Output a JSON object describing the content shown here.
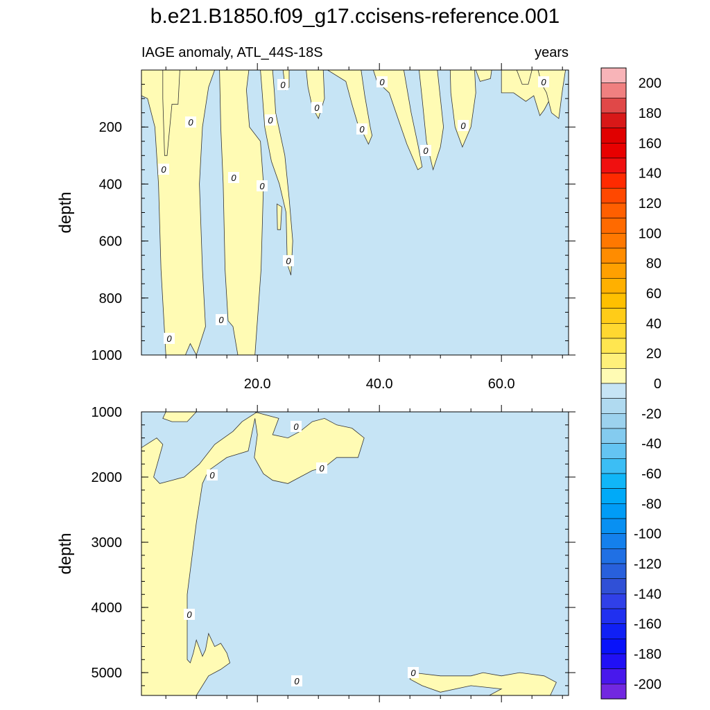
{
  "chart_data": {
    "type": "contour",
    "title": "b.e21.B1850.f09_g17.ccisens-reference.001",
    "subtitle_left": "IAGE anomaly, ATL_44S-18S",
    "subtitle_right": "years",
    "xlim": [
      1,
      71
    ],
    "x_ticks": [
      20,
      40,
      60
    ],
    "x_tick_labels": [
      "20.0",
      "40.0",
      "60.0"
    ],
    "colors": {
      "positive_fill": "#fffbb4",
      "negative_fill": "#c6e4f5",
      "contour_line": "#333333"
    },
    "panels": [
      {
        "name": "upper",
        "ylabel": "depth",
        "ylim": [
          0,
          1000
        ],
        "y_reversed": true,
        "y_tick_labels": [
          "200",
          "400",
          "600",
          "800",
          "1000"
        ],
        "y_ticks": [
          200,
          400,
          600,
          800,
          1000
        ],
        "contour_labels": [
          "0",
          "0",
          "0",
          "0",
          "0",
          "0",
          "0",
          "0",
          "0",
          "0",
          "0",
          "0",
          "0",
          "0",
          "0",
          "0"
        ],
        "positive_regions": [
          [
            [
              1,
              0
            ],
            [
              13,
              0
            ],
            [
              12,
              60
            ],
            [
              11,
              200
            ],
            [
              10.5,
              400
            ],
            [
              11,
              700
            ],
            [
              11.5,
              900
            ],
            [
              10,
              1000
            ],
            [
              10,
              1000
            ],
            [
              9,
              960
            ],
            [
              8.2,
              1000
            ],
            [
              5,
              1000
            ],
            [
              4.2,
              700
            ],
            [
              3.8,
              400
            ],
            [
              3.2,
              200
            ],
            [
              2,
              100
            ],
            [
              1,
              90
            ]
          ],
          [
            [
              4.5,
              0
            ],
            [
              7.3,
              0
            ],
            [
              7,
              120
            ],
            [
              6,
              120
            ],
            [
              5.2,
              300
            ],
            [
              4.8,
              300
            ],
            [
              4.5,
              100
            ]
          ],
          [
            [
              13.8,
              0
            ],
            [
              18.6,
              0
            ],
            [
              18.2,
              70
            ],
            [
              18.7,
              200
            ],
            [
              20.5,
              250
            ],
            [
              21,
              400
            ],
            [
              20.6,
              700
            ],
            [
              19.6,
              1000
            ],
            [
              16.8,
              1000
            ],
            [
              16,
              900
            ],
            [
              15.2,
              880
            ],
            [
              14.7,
              700
            ],
            [
              14.4,
              400
            ],
            [
              14,
              200
            ]
          ],
          [
            [
              20.5,
              0
            ],
            [
              22.5,
              0
            ],
            [
              22.8,
              80
            ],
            [
              23,
              150
            ],
            [
              24.5,
              300
            ],
            [
              25.2,
              450
            ],
            [
              25.8,
              600
            ],
            [
              25.5,
              720
            ],
            [
              24.9,
              680
            ],
            [
              24.7,
              500
            ],
            [
              23.6,
              400
            ],
            [
              22.3,
              320
            ],
            [
              21.2,
              200
            ],
            [
              20.8,
              80
            ]
          ],
          [
            [
              24.2,
              0
            ],
            [
              25.2,
              0
            ],
            [
              25.2,
              60
            ],
            [
              24.6,
              70
            ]
          ],
          [
            [
              28,
              0
            ],
            [
              30.8,
              0
            ],
            [
              31,
              100
            ],
            [
              30,
              170
            ],
            [
              29,
              130
            ],
            [
              28.3,
              60
            ]
          ],
          [
            [
              31.5,
              0
            ],
            [
              37,
              0
            ],
            [
              37.6,
              90
            ],
            [
              38.5,
              200
            ],
            [
              38.8,
              230
            ],
            [
              38.2,
              260
            ],
            [
              37.3,
              220
            ],
            [
              36.6,
              200
            ],
            [
              35.5,
              120
            ],
            [
              34.5,
              40
            ]
          ],
          [
            [
              39,
              0
            ],
            [
              44,
              0
            ],
            [
              45.2,
              150
            ],
            [
              46.3,
              260
            ],
            [
              47,
              340
            ],
            [
              46.3,
              350
            ],
            [
              44.5,
              260
            ],
            [
              43.2,
              180
            ],
            [
              41.6,
              80
            ],
            [
              39.6,
              40
            ]
          ],
          [
            [
              46.5,
              0
            ],
            [
              49.5,
              0
            ],
            [
              50.5,
              200
            ],
            [
              50,
              270
            ],
            [
              48.8,
              350
            ],
            [
              47.7,
              250
            ],
            [
              47,
              100
            ]
          ],
          [
            [
              51.6,
              0
            ],
            [
              55.6,
              0
            ],
            [
              55.8,
              80
            ],
            [
              55,
              200
            ],
            [
              53.6,
              270
            ],
            [
              52.4,
              200
            ],
            [
              51.7,
              80
            ]
          ],
          [
            [
              55.8,
              0
            ],
            [
              58.4,
              0
            ],
            [
              58.2,
              30
            ],
            [
              56.5,
              40
            ]
          ],
          [
            [
              60,
              0
            ],
            [
              68,
              0
            ],
            [
              68,
              100
            ],
            [
              67,
              140
            ],
            [
              66.3,
              160
            ],
            [
              65.3,
              90
            ],
            [
              64,
              110
            ],
            [
              62,
              80
            ],
            [
              60,
              80
            ]
          ],
          [
            [
              62.5,
              0
            ],
            [
              65,
              0
            ],
            [
              64.4,
              50
            ],
            [
              63.4,
              50
            ]
          ],
          [
            [
              66,
              0
            ],
            [
              70.5,
              0
            ],
            [
              70,
              70
            ],
            [
              69.4,
              170
            ],
            [
              68.2,
              150
            ],
            [
              67.4,
              80
            ],
            [
              66.6,
              50
            ]
          ],
          [
            [
              23.2,
              470
            ],
            [
              24,
              480
            ],
            [
              23.8,
              560
            ],
            [
              23.3,
              560
            ]
          ]
        ]
      },
      {
        "name": "lower",
        "ylabel": "depth",
        "ylim": [
          1000,
          5350
        ],
        "y_reversed": true,
        "y_tick_labels": [
          "1000",
          "2000",
          "3000",
          "4000",
          "5000"
        ],
        "y_ticks": [
          1000,
          2000,
          3000,
          4000,
          5000
        ],
        "contour_labels": [
          "0",
          "0",
          "0",
          "0",
          "0",
          "0"
        ],
        "positive_regions": [
          [
            [
              1,
              1550
            ],
            [
              3.5,
              1400
            ],
            [
              4.5,
              1500
            ],
            [
              3,
              2000
            ],
            [
              4,
              2100
            ],
            [
              6,
              2050
            ],
            [
              8,
              2000
            ],
            [
              10.5,
              1800
            ],
            [
              13,
              1500
            ],
            [
              16,
              1300
            ],
            [
              17.5,
              1150
            ],
            [
              20,
              1000
            ],
            [
              19.5,
              1000
            ],
            [
              23.5,
              1100
            ],
            [
              22.5,
              1350
            ],
            [
              25,
              1400
            ],
            [
              27,
              1300
            ],
            [
              29,
              1150
            ],
            [
              31,
              1100
            ],
            [
              33,
              1200
            ],
            [
              35.5,
              1250
            ],
            [
              37.5,
              1400
            ],
            [
              36.5,
              1700
            ],
            [
              33,
              1700
            ],
            [
              31,
              1850
            ],
            [
              29,
              1900
            ],
            [
              27,
              2000
            ],
            [
              25,
              2100
            ],
            [
              22.5,
              2050
            ],
            [
              21,
              1950
            ],
            [
              19.5,
              1700
            ],
            [
              20,
              1350
            ],
            [
              19.6,
              1100
            ],
            [
              18.5,
              1600
            ],
            [
              15,
              1700
            ],
            [
              12,
              1900
            ],
            [
              11,
              2100
            ],
            [
              10,
              2700
            ],
            [
              8.5,
              3800
            ],
            [
              8.5,
              4800
            ],
            [
              9,
              4850
            ],
            [
              9.5,
              4700
            ],
            [
              10,
              4500
            ],
            [
              11,
              4750
            ],
            [
              11.5,
              4650
            ],
            [
              12,
              4400
            ],
            [
              13,
              4600
            ],
            [
              14,
              4550
            ],
            [
              15,
              4700
            ],
            [
              15.5,
              4850
            ],
            [
              14,
              4950
            ],
            [
              12,
              5050
            ],
            [
              10,
              5350
            ],
            [
              1,
              5350
            ]
          ],
          [
            [
              5,
              1000
            ],
            [
              10,
              1000
            ],
            [
              8.5,
              1150
            ],
            [
              6,
              1150
            ],
            [
              4.5,
              1100
            ]
          ],
          [
            [
              45.5,
              5000
            ],
            [
              50,
              5050
            ],
            [
              55,
              5050
            ],
            [
              57,
              5000
            ],
            [
              60,
              5050
            ],
            [
              63,
              5000
            ],
            [
              67,
              5050
            ],
            [
              69,
              5150
            ],
            [
              68,
              5350
            ],
            [
              58,
              5350
            ],
            [
              60,
              5250
            ],
            [
              55,
              5200
            ],
            [
              50,
              5300
            ],
            [
              47,
              5200
            ],
            [
              45,
              5100
            ]
          ]
        ]
      }
    ],
    "colorbar": {
      "labels": [
        "200",
        "180",
        "160",
        "140",
        "120",
        "100",
        "80",
        "60",
        "40",
        "20",
        "0",
        "-20",
        "-40",
        "-60",
        "-80",
        "-100",
        "-120",
        "-140",
        "-160",
        "-180",
        "-200"
      ],
      "levels": [
        210,
        200,
        190,
        180,
        170,
        160,
        150,
        140,
        130,
        120,
        110,
        100,
        90,
        80,
        70,
        60,
        50,
        40,
        30,
        20,
        10,
        0,
        -10,
        -20,
        -30,
        -40,
        -50,
        -60,
        -70,
        -80,
        -90,
        -100,
        -110,
        -120,
        -130,
        -140,
        -150,
        -160,
        -170,
        -180,
        -190,
        -200,
        -210
      ],
      "colors": [
        "#f8b4b8",
        "#f08080",
        "#e04848",
        "#d81818",
        "#e00000",
        "#e80000",
        "#f01010",
        "#ff2a00",
        "#ff4800",
        "#ff5f00",
        "#ff6a00",
        "#ff7800",
        "#ff8c00",
        "#ffa000",
        "#ffb000",
        "#ffc000",
        "#ffcc18",
        "#ffd830",
        "#ffe650",
        "#fff07a",
        "#fffbb4",
        "#c6e4f5",
        "#b0daf0",
        "#9cd2ee",
        "#84cbef",
        "#64c4f2",
        "#3cbef5",
        "#10b6f8",
        "#00aaf8",
        "#009cf6",
        "#0890f2",
        "#1480ec",
        "#2070e4",
        "#2860dc",
        "#3050d6",
        "#3040e8",
        "#2030f0",
        "#1020f5",
        "#0812fa",
        "#2010f5",
        "#4818ec",
        "#7228e0"
      ]
    }
  }
}
